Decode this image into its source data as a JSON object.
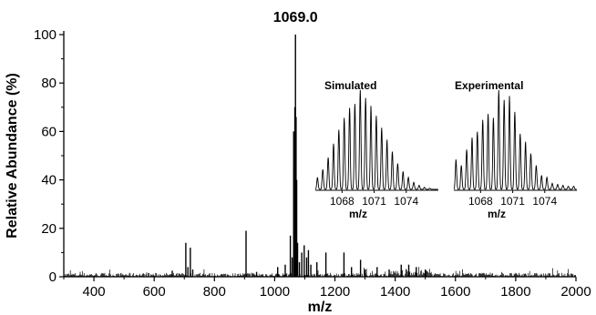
{
  "chart_data": {
    "type": "line",
    "title": "",
    "xlabel": "m/z",
    "ylabel": "Relative Abundance (%)",
    "xlim": [
      300,
      2000
    ],
    "ylim": [
      0,
      100
    ],
    "x_ticks": [
      400,
      600,
      800,
      1000,
      1200,
      1400,
      1600,
      1800,
      2000
    ],
    "y_ticks": [
      0,
      20,
      40,
      60,
      80,
      100
    ],
    "peak_label": "1069.0",
    "peaks": [
      {
        "x": 660,
        "y": 2.5
      },
      {
        "x": 705,
        "y": 14
      },
      {
        "x": 712,
        "y": 4
      },
      {
        "x": 720,
        "y": 12
      },
      {
        "x": 728,
        "y": 3
      },
      {
        "x": 905,
        "y": 19
      },
      {
        "x": 940,
        "y": 2
      },
      {
        "x": 1010,
        "y": 4
      },
      {
        "x": 1035,
        "y": 5
      },
      {
        "x": 1052,
        "y": 17
      },
      {
        "x": 1058,
        "y": 8
      },
      {
        "x": 1063,
        "y": 60
      },
      {
        "x": 1065,
        "y": 44
      },
      {
        "x": 1067,
        "y": 70
      },
      {
        "x": 1069,
        "y": 100
      },
      {
        "x": 1071,
        "y": 66
      },
      {
        "x": 1073,
        "y": 40
      },
      {
        "x": 1076,
        "y": 14
      },
      {
        "x": 1082,
        "y": 6
      },
      {
        "x": 1090,
        "y": 10
      },
      {
        "x": 1098,
        "y": 13
      },
      {
        "x": 1106,
        "y": 8
      },
      {
        "x": 1112,
        "y": 11
      },
      {
        "x": 1120,
        "y": 5
      },
      {
        "x": 1140,
        "y": 6
      },
      {
        "x": 1170,
        "y": 10
      },
      {
        "x": 1230,
        "y": 10
      },
      {
        "x": 1255,
        "y": 4
      },
      {
        "x": 1285,
        "y": 7
      },
      {
        "x": 1300,
        "y": 3
      },
      {
        "x": 1340,
        "y": 4
      },
      {
        "x": 1380,
        "y": 3
      },
      {
        "x": 1420,
        "y": 5
      },
      {
        "x": 1445,
        "y": 5
      },
      {
        "x": 1470,
        "y": 4
      },
      {
        "x": 1500,
        "y": 3
      }
    ],
    "insets": [
      {
        "title": "Simulated",
        "xlabel": "m/z",
        "xlim": [
          1065.5,
          1077
        ],
        "x_ticks": [
          1068,
          1071,
          1074
        ],
        "peaks": [
          {
            "x": 1065.7,
            "y": 12
          },
          {
            "x": 1066.2,
            "y": 20
          },
          {
            "x": 1066.7,
            "y": 32
          },
          {
            "x": 1067.2,
            "y": 46
          },
          {
            "x": 1067.7,
            "y": 60
          },
          {
            "x": 1068.2,
            "y": 72
          },
          {
            "x": 1068.7,
            "y": 82
          },
          {
            "x": 1069.2,
            "y": 86
          },
          {
            "x": 1069.7,
            "y": 100
          },
          {
            "x": 1070.2,
            "y": 92
          },
          {
            "x": 1070.7,
            "y": 84
          },
          {
            "x": 1071.2,
            "y": 74
          },
          {
            "x": 1071.7,
            "y": 62
          },
          {
            "x": 1072.2,
            "y": 50
          },
          {
            "x": 1072.7,
            "y": 38
          },
          {
            "x": 1073.2,
            "y": 26
          },
          {
            "x": 1073.7,
            "y": 18
          },
          {
            "x": 1074.2,
            "y": 12
          },
          {
            "x": 1074.7,
            "y": 7
          },
          {
            "x": 1075.2,
            "y": 4
          },
          {
            "x": 1075.7,
            "y": 2
          },
          {
            "x": 1076.2,
            "y": 1
          }
        ]
      },
      {
        "title": "Experimental",
        "xlabel": "m/z",
        "xlim": [
          1065.5,
          1077
        ],
        "x_ticks": [
          1068,
          1071,
          1074
        ],
        "peaks": [
          {
            "x": 1065.7,
            "y": 30
          },
          {
            "x": 1066.2,
            "y": 24
          },
          {
            "x": 1066.7,
            "y": 40
          },
          {
            "x": 1067.2,
            "y": 52
          },
          {
            "x": 1067.7,
            "y": 58
          },
          {
            "x": 1068.2,
            "y": 70
          },
          {
            "x": 1068.7,
            "y": 76
          },
          {
            "x": 1069.2,
            "y": 72
          },
          {
            "x": 1069.7,
            "y": 100
          },
          {
            "x": 1070.2,
            "y": 90
          },
          {
            "x": 1070.7,
            "y": 94
          },
          {
            "x": 1071.2,
            "y": 78
          },
          {
            "x": 1071.7,
            "y": 56
          },
          {
            "x": 1072.2,
            "y": 48
          },
          {
            "x": 1072.7,
            "y": 36
          },
          {
            "x": 1073.2,
            "y": 24
          },
          {
            "x": 1073.7,
            "y": 14
          },
          {
            "x": 1074.2,
            "y": 12
          },
          {
            "x": 1074.7,
            "y": 6
          },
          {
            "x": 1075.2,
            "y": 5
          },
          {
            "x": 1075.7,
            "y": 4
          },
          {
            "x": 1076.2,
            "y": 3
          },
          {
            "x": 1076.7,
            "y": 3
          }
        ]
      }
    ]
  }
}
